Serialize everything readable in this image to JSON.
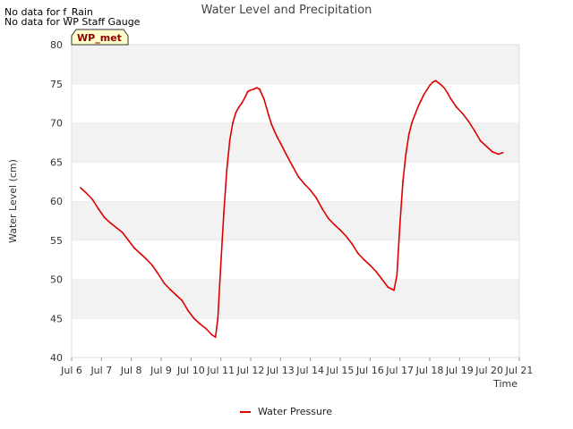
{
  "notes": [
    "No data for f_Rain",
    "No data for WP Staff Gauge"
  ],
  "badge": "WP_met",
  "chart_data": {
    "type": "line",
    "title": "Water Level and Precipitation",
    "xlabel": "Time",
    "ylabel": "Water Level (cm)",
    "xlim": [
      6,
      21
    ],
    "ylim": [
      40,
      80
    ],
    "x_ticks": [
      6,
      7,
      8,
      9,
      10,
      11,
      12,
      13,
      14,
      15,
      16,
      17,
      18,
      19,
      20,
      21
    ],
    "x_tick_labels": [
      "Jul 6",
      "Jul 7",
      "Jul 8",
      "Jul 9",
      "Jul 10",
      "Jul 11",
      "Jul 12",
      "Jul 13",
      "Jul 14",
      "Jul 15",
      "Jul 16",
      "Jul 17",
      "Jul 18",
      "Jul 19",
      "Jul 20",
      "Jul 21"
    ],
    "y_ticks": [
      40,
      45,
      50,
      55,
      60,
      65,
      70,
      75,
      80
    ],
    "grid": "horizontal bands",
    "legend_placement": "bottom-center",
    "colors": {
      "series": "#dd0000",
      "band": "#f2f2f2",
      "badge_bg": "#ffffcc"
    },
    "series": [
      {
        "name": "Water Pressure",
        "x": [
          6.3,
          6.5,
          6.7,
          6.9,
          7.1,
          7.3,
          7.5,
          7.7,
          7.9,
          8.1,
          8.3,
          8.5,
          8.7,
          8.9,
          9.1,
          9.3,
          9.5,
          9.7,
          9.9,
          10.1,
          10.3,
          10.5,
          10.7,
          10.82,
          10.9,
          11.0,
          11.1,
          11.2,
          11.3,
          11.4,
          11.5,
          11.6,
          11.7,
          11.8,
          11.9,
          12.0,
          12.1,
          12.2,
          12.3,
          12.45,
          12.6,
          12.7,
          12.8,
          12.9,
          13.0,
          13.2,
          13.4,
          13.6,
          13.8,
          14.0,
          14.2,
          14.4,
          14.6,
          14.8,
          15.0,
          15.2,
          15.4,
          15.6,
          15.8,
          16.0,
          16.2,
          16.4,
          16.6,
          16.8,
          16.9,
          17.0,
          17.1,
          17.2,
          17.3,
          17.4,
          17.5,
          17.6,
          17.7,
          17.8,
          17.9,
          18.0,
          18.1,
          18.2,
          18.3,
          18.4,
          18.5,
          18.6,
          18.7,
          18.9,
          19.1,
          19.3,
          19.5,
          19.7,
          19.9,
          20.1,
          20.3,
          20.45
        ],
        "values": [
          61.7,
          61.0,
          60.2,
          59.0,
          57.9,
          57.2,
          56.6,
          56.0,
          55.0,
          54.0,
          53.3,
          52.6,
          51.8,
          50.7,
          49.5,
          48.7,
          48.0,
          47.3,
          46.0,
          45.0,
          44.3,
          43.7,
          42.9,
          42.6,
          45.0,
          52.0,
          58.5,
          64.0,
          67.8,
          70.0,
          71.3,
          72.0,
          72.5,
          73.2,
          74.0,
          74.2,
          74.3,
          74.5,
          74.3,
          73.0,
          71.0,
          69.8,
          68.9,
          68.1,
          67.4,
          65.9,
          64.5,
          63.1,
          62.2,
          61.4,
          60.4,
          59.0,
          57.8,
          57.0,
          56.3,
          55.5,
          54.5,
          53.3,
          52.5,
          51.8,
          51.0,
          50.0,
          49.0,
          48.6,
          50.5,
          57.0,
          62.5,
          66.0,
          68.5,
          70.0,
          71.0,
          72.0,
          72.8,
          73.6,
          74.2,
          74.8,
          75.2,
          75.4,
          75.1,
          74.8,
          74.4,
          73.8,
          73.1,
          72.0,
          71.2,
          70.2,
          69.0,
          67.7,
          67.0,
          66.3,
          66.0,
          66.2
        ]
      }
    ]
  }
}
